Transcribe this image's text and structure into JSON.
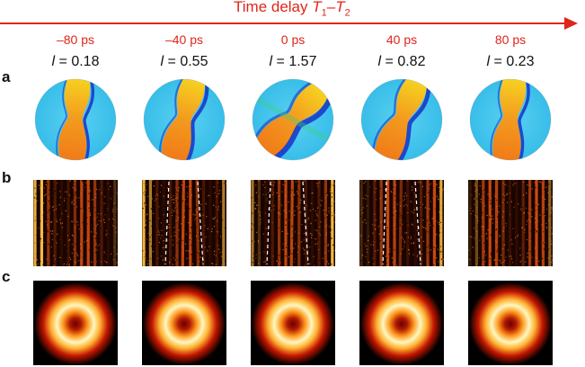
{
  "header": {
    "title_prefix": "Time delay ",
    "t1": "T",
    "t1_sub": "1",
    "dash": "–",
    "t2": "T",
    "t2_sub": "2"
  },
  "columns": [
    {
      "delay": "–80 ps",
      "l_symbol": "l",
      "l_value": "= 0.18",
      "fringe_dashes": false,
      "vortex_twist": 0.18
    },
    {
      "delay": "–40 ps",
      "l_symbol": "l",
      "l_value": "= 0.55",
      "fringe_dashes": true,
      "vortex_twist": 0.55
    },
    {
      "delay": "0 ps",
      "l_symbol": "l",
      "l_value": "= 1.57",
      "fringe_dashes": true,
      "vortex_twist": 1.57
    },
    {
      "delay": "40 ps",
      "l_symbol": "l",
      "l_value": "= 0.82",
      "fringe_dashes": true,
      "vortex_twist": 0.82
    },
    {
      "delay": "80 ps",
      "l_symbol": "l",
      "l_value": "= 0.23",
      "fringe_dashes": false,
      "vortex_twist": 0.23
    }
  ],
  "row_labels": {
    "a": "a",
    "b": "b",
    "c": "c"
  },
  "colors": {
    "accent": "#e0251b",
    "phase_cyan": "#2fb9e8",
    "phase_orange": "#f39a1e",
    "phase_dark_blue": "#1533c9",
    "phase_yellow": "#f6d321",
    "fringe_dark": "#1a0400",
    "fringe_bright": "#f8c040",
    "beam_core": "#fff8c0",
    "beam_edge": "#c21500"
  }
}
